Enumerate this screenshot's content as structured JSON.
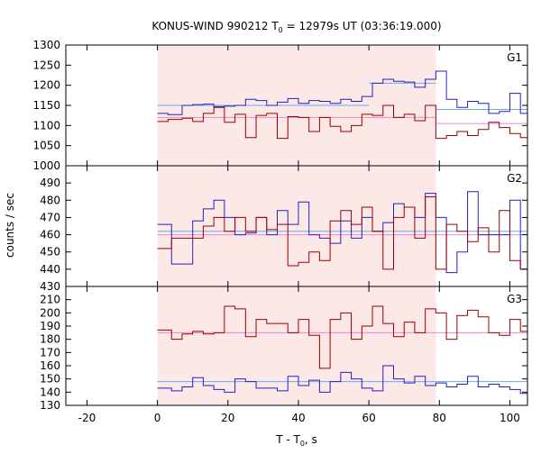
{
  "chart_data": {
    "type": "line",
    "title_main": "KONUS-WIND 990212 T",
    "title_sub": "0",
    "title_rest": " = 12979s UT (03:36:19.000)",
    "xlabel_main": "T - T",
    "xlabel_sub": "0",
    "xlabel_rest": ", s",
    "ylabel": "counts / sec",
    "xlim": [
      -26,
      105
    ],
    "xticks": [
      -20,
      0,
      20,
      40,
      60,
      80,
      100
    ],
    "shade_range": [
      0,
      79
    ],
    "colors": {
      "red_series": "#9a0000",
      "blue_series": "#2222bb",
      "red_fit": "#ee88cc",
      "blue_fit": "#66aaee",
      "shade": "#fde8e8"
    },
    "panels": [
      {
        "label": "G1",
        "ylim": [
          1000,
          1300
        ],
        "yticks": [
          1000,
          1050,
          1100,
          1150,
          1200,
          1250,
          1300
        ],
        "series": [
          {
            "color_key": "blue_series",
            "x": [
              0,
              3,
              7,
              10,
              13,
              16,
              19,
              22,
              25,
              28,
              31,
              34,
              37,
              40,
              43,
              46,
              49,
              52,
              55,
              58,
              61,
              64,
              67,
              70,
              73,
              76,
              79,
              82,
              85,
              88,
              91,
              94,
              97,
              100,
              103
            ],
            "y": [
              1130,
              1127,
              1150,
              1152,
              1153,
              1147,
              1148,
              1150,
              1165,
              1162,
              1150,
              1158,
              1167,
              1155,
              1162,
              1160,
              1155,
              1165,
              1160,
              1172,
              1205,
              1215,
              1210,
              1208,
              1195,
              1215,
              1235,
              1165,
              1145,
              1160,
              1155,
              1130,
              1135,
              1180,
              1130
            ]
          },
          {
            "color_key": "red_series",
            "x": [
              0,
              3,
              7,
              10,
              13,
              16,
              19,
              22,
              25,
              28,
              31,
              34,
              37,
              40,
              43,
              46,
              49,
              52,
              55,
              58,
              61,
              64,
              67,
              70,
              73,
              76,
              79,
              82,
              85,
              88,
              91,
              94,
              97,
              100,
              103
            ],
            "y": [
              1110,
              1115,
              1118,
              1110,
              1130,
              1145,
              1108,
              1128,
              1070,
              1125,
              1130,
              1068,
              1122,
              1120,
              1085,
              1120,
              1098,
              1085,
              1100,
              1128,
              1125,
              1150,
              1120,
              1128,
              1112,
              1150,
              1068,
              1075,
              1085,
              1075,
              1090,
              1108,
              1095,
              1080,
              1070
            ]
          }
        ],
        "fits": [
          {
            "color_key": "blue_fit",
            "segments": [
              [
                0,
                60,
                1150
              ],
              [
                60,
                79,
                1205
              ],
              [
                79,
                105,
                1140
              ]
            ]
          },
          {
            "color_key": "red_fit",
            "segments": [
              [
                0,
                79,
                1120
              ],
              [
                79,
                105,
                1105
              ]
            ]
          }
        ]
      },
      {
        "label": "G2",
        "ylim": [
          430,
          500
        ],
        "yticks": [
          430,
          440,
          450,
          460,
          470,
          480,
          490
        ],
        "series": [
          {
            "color_key": "blue_series",
            "x": [
              0,
              4,
              7,
              10,
              13,
              16,
              19,
              22,
              25,
              28,
              31,
              34,
              37,
              40,
              43,
              46,
              49,
              52,
              55,
              58,
              61,
              64,
              67,
              70,
              73,
              76,
              79,
              82,
              85,
              88,
              91,
              94,
              97,
              100,
              103
            ],
            "y": [
              466,
              443,
              443,
              468,
              475,
              480,
              470,
              460,
              461,
              470,
              460,
              474,
              466,
              479,
              460,
              458,
              455,
              468,
              458,
              470,
              462,
              467,
              478,
              476,
              470,
              484,
              470,
              438,
              450,
              485,
              460,
              460,
              460,
              480,
              440
            ]
          },
          {
            "color_key": "red_series",
            "x": [
              0,
              4,
              7,
              10,
              13,
              16,
              19,
              22,
              25,
              28,
              31,
              34,
              37,
              40,
              43,
              46,
              49,
              52,
              55,
              58,
              61,
              64,
              67,
              70,
              73,
              76,
              79,
              82,
              85,
              88,
              91,
              94,
              97,
              100,
              103
            ],
            "y": [
              452,
              458,
              458,
              458,
              465,
              470,
              462,
              470,
              462,
              470,
              463,
              466,
              442,
              444,
              450,
              445,
              468,
              474,
              466,
              476,
              462,
              440,
              470,
              476,
              458,
              482,
              440,
              466,
              462,
              456,
              464,
              450,
              474,
              445,
              440
            ]
          }
        ],
        "fits": [
          {
            "color_key": "blue_fit",
            "segments": [
              [
                0,
                105,
                462
              ]
            ]
          },
          {
            "color_key": "red_fit",
            "segments": [
              [
                0,
                105,
                460
              ]
            ]
          }
        ]
      },
      {
        "label": "G3",
        "ylim": [
          130,
          220
        ],
        "yticks": [
          130,
          140,
          150,
          160,
          170,
          180,
          190,
          200,
          210
        ],
        "series": [
          {
            "color_key": "blue_series",
            "x": [
              0,
              4,
              7,
              10,
              13,
              16,
              19,
              22,
              25,
              28,
              31,
              34,
              37,
              40,
              43,
              46,
              49,
              52,
              55,
              58,
              61,
              64,
              67,
              70,
              73,
              76,
              79,
              82,
              85,
              88,
              91,
              94,
              97,
              100,
              103
            ],
            "y": [
              143,
              141,
              144,
              151,
              145,
              142,
              140,
              150,
              148,
              143,
              143,
              141,
              152,
              145,
              149,
              140,
              148,
              155,
              150,
              143,
              141,
              160,
              150,
              147,
              152,
              145,
              147,
              144,
              146,
              152,
              144,
              146,
              144,
              142,
              139
            ]
          },
          {
            "color_key": "red_series",
            "x": [
              0,
              4,
              7,
              10,
              13,
              16,
              19,
              22,
              25,
              28,
              31,
              34,
              37,
              40,
              43,
              46,
              49,
              52,
              55,
              58,
              61,
              64,
              67,
              70,
              73,
              76,
              79,
              82,
              85,
              88,
              91,
              94,
              97,
              100,
              103
            ],
            "y": [
              187,
              180,
              184,
              186,
              184,
              185,
              205,
              203,
              182,
              195,
              192,
              192,
              185,
              195,
              183,
              158,
              195,
              200,
              180,
              190,
              205,
              192,
              182,
              193,
              185,
              203,
              200,
              180,
              198,
              202,
              197,
              185,
              183,
              195,
              186
            ]
          }
        ],
        "fits": [
          {
            "color_key": "blue_fit",
            "segments": [
              [
                0,
                105,
                148
              ]
            ]
          },
          {
            "color_key": "red_fit",
            "segments": [
              [
                0,
                105,
                185
              ]
            ]
          }
        ]
      }
    ]
  }
}
